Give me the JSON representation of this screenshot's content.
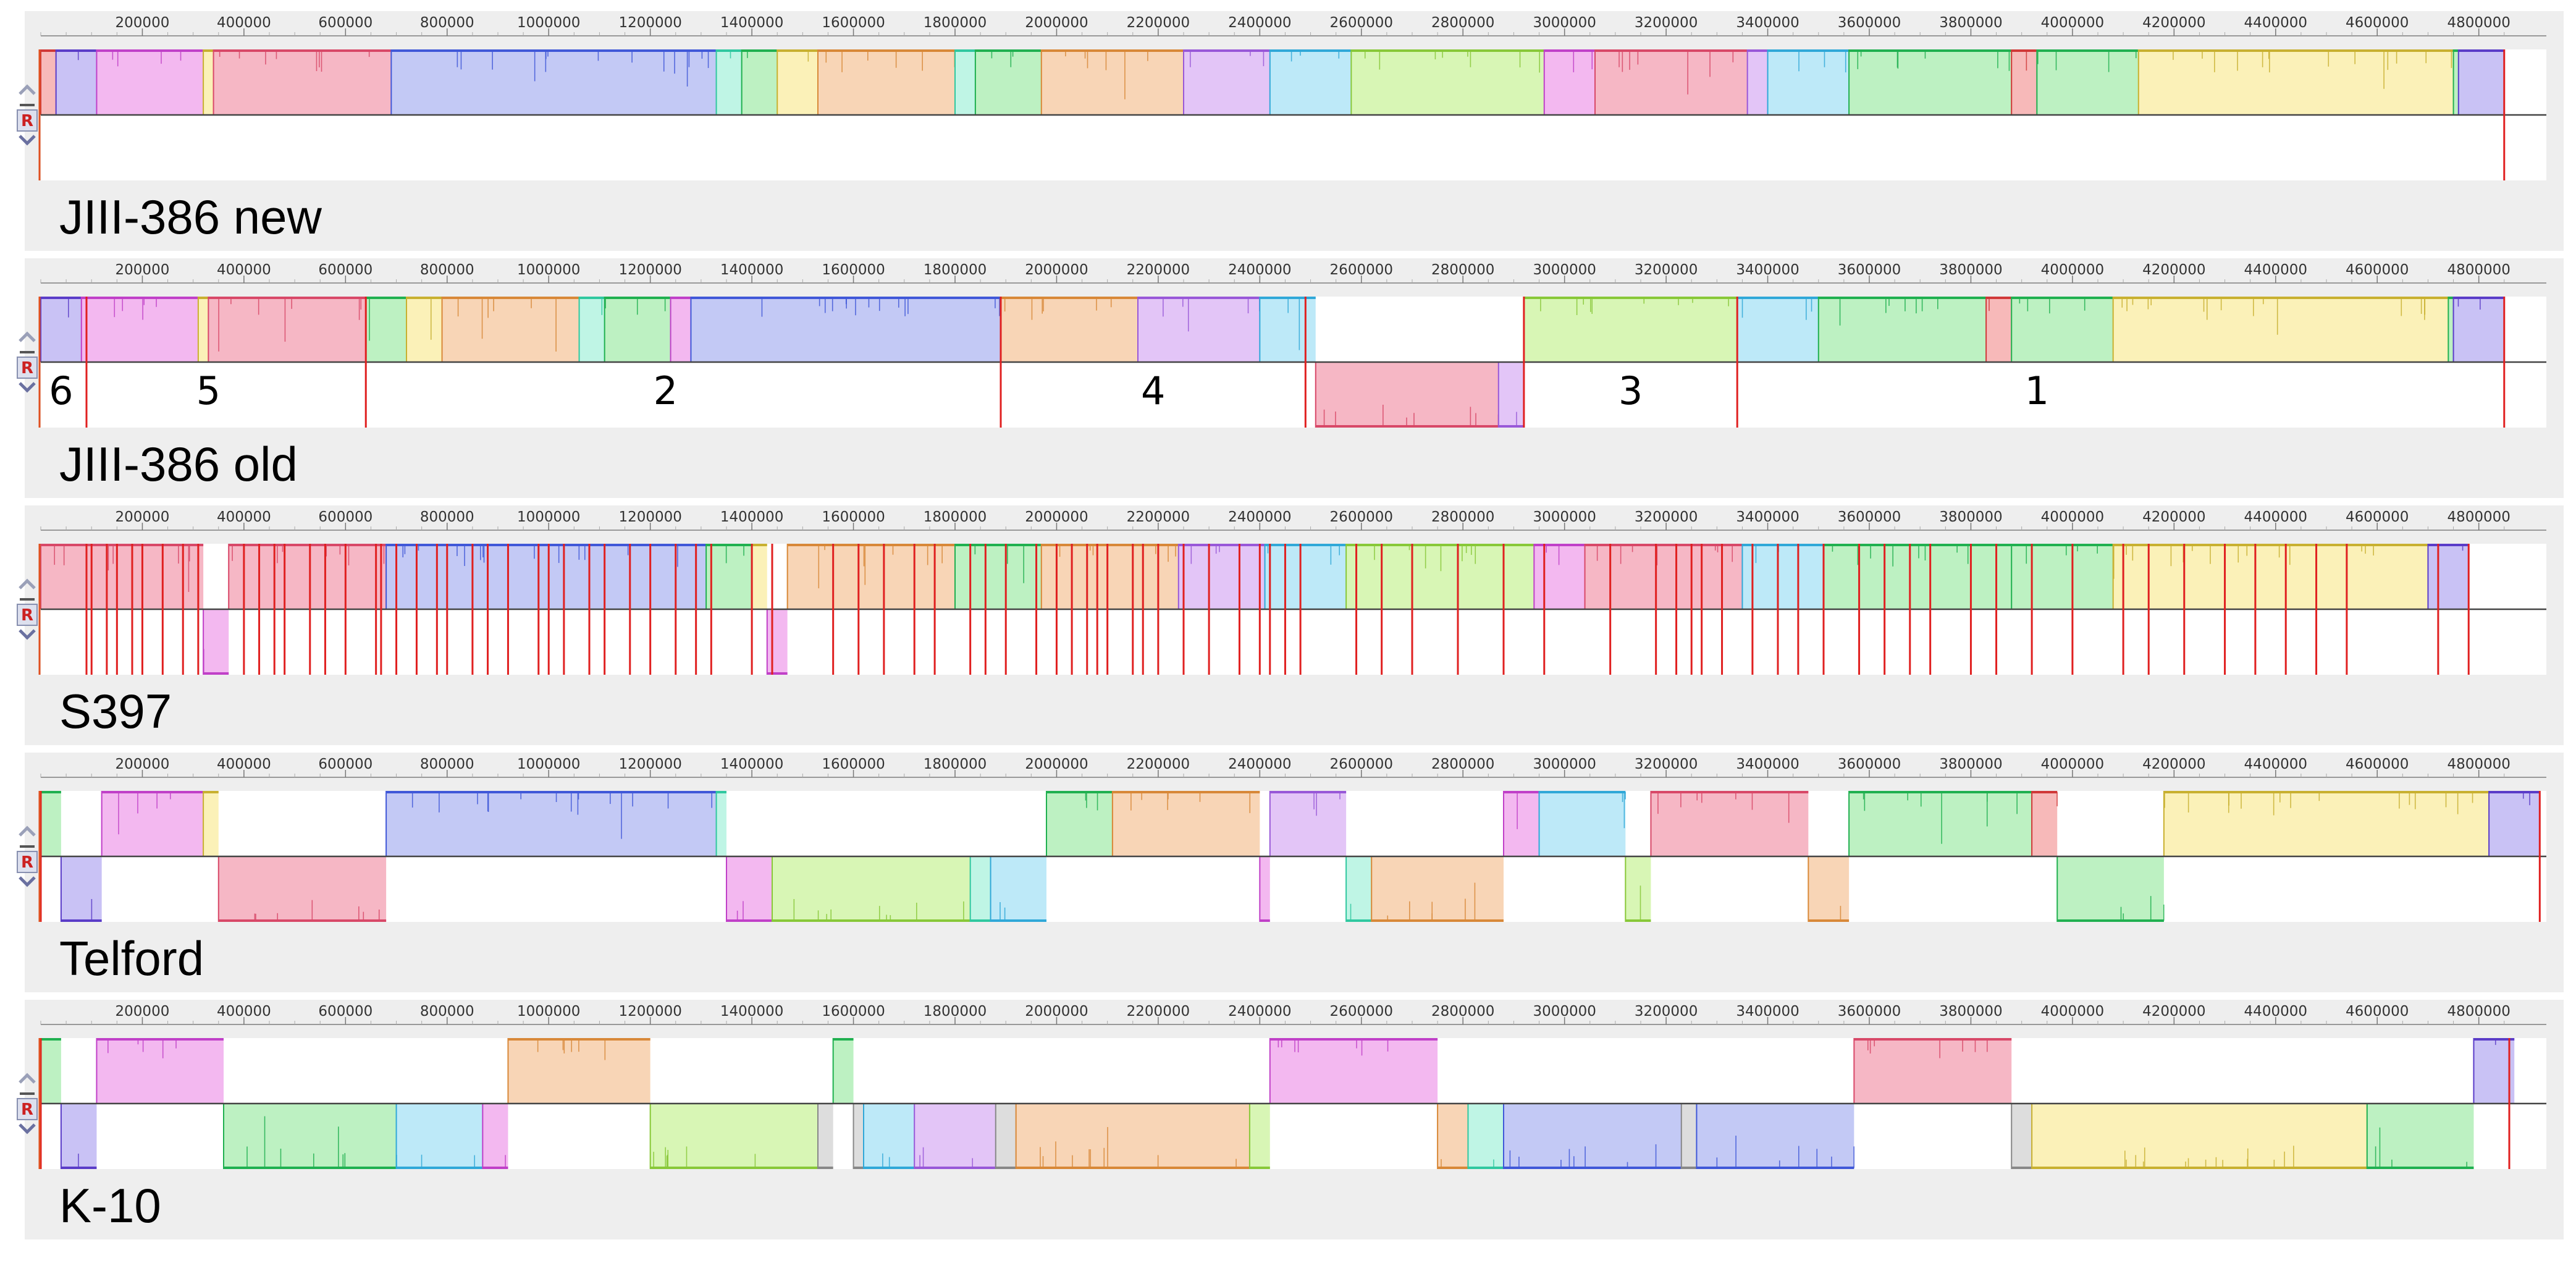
{
  "figure": {
    "type": "genome-alignment",
    "description_free": true,
    "axis": {
      "min": 0,
      "max": 4860000
    },
    "tick_values": [
      200000,
      400000,
      600000,
      800000,
      1000000,
      1200000,
      1400000,
      1600000,
      1800000,
      2000000,
      2200000,
      2400000,
      2600000,
      2800000,
      3000000,
      3200000,
      3400000,
      3600000,
      3800000,
      4000000,
      4200000,
      4400000,
      4600000,
      4800000
    ],
    "control_letter": "R",
    "colors": {
      "purple": "#c9c2f5",
      "magenta": "#f3b8f0",
      "pink": "#f6b7c5",
      "blue": "#c3c9f5",
      "green": "#bdf1c2",
      "peach": "#f8d5b6",
      "lgreen": "#d8f6b5",
      "lavender": "#e3c5f7",
      "sky": "#bde9f8",
      "yellow": "#fbf1b8",
      "aqua": "#bff5e5",
      "red": "#f7b9b9",
      "gray": "#dddddd"
    },
    "edge_colors": {
      "purple": "#5a3cc8",
      "magenta": "#c040c8",
      "pink": "#d84868",
      "blue": "#4058d8",
      "green": "#20b050",
      "peach": "#d88838",
      "lgreen": "#88c838",
      "lavender": "#9858d8",
      "sky": "#30a8d8",
      "yellow": "#c8b030",
      "aqua": "#30c8a0",
      "red": "#d03838",
      "gray": "#888888"
    }
  },
  "genomes": [
    {
      "name": "JIII-386 new",
      "blocks": [
        {
          "s": 0,
          "e": 30000,
          "c": "red",
          "d": 1
        },
        {
          "s": 30000,
          "e": 110000,
          "c": "purple",
          "d": 1
        },
        {
          "s": 110000,
          "e": 320000,
          "c": "magenta",
          "d": 1
        },
        {
          "s": 320000,
          "e": 340000,
          "c": "yellow",
          "d": 1
        },
        {
          "s": 340000,
          "e": 690000,
          "c": "pink",
          "d": 1
        },
        {
          "s": 690000,
          "e": 1330000,
          "c": "blue",
          "d": 1
        },
        {
          "s": 1330000,
          "e": 1380000,
          "c": "aqua",
          "d": 1
        },
        {
          "s": 1380000,
          "e": 1450000,
          "c": "green",
          "d": 1
        },
        {
          "s": 1450000,
          "e": 1530000,
          "c": "yellow",
          "d": 1
        },
        {
          "s": 1530000,
          "e": 1800000,
          "c": "peach",
          "d": 1
        },
        {
          "s": 1800000,
          "e": 1840000,
          "c": "aqua",
          "d": 1
        },
        {
          "s": 1840000,
          "e": 1970000,
          "c": "green",
          "d": 1
        },
        {
          "s": 1970000,
          "e": 2250000,
          "c": "peach",
          "d": 1
        },
        {
          "s": 2250000,
          "e": 2420000,
          "c": "lavender",
          "d": 1
        },
        {
          "s": 2420000,
          "e": 2580000,
          "c": "sky",
          "d": 1
        },
        {
          "s": 2580000,
          "e": 2960000,
          "c": "lgreen",
          "d": 1
        },
        {
          "s": 2960000,
          "e": 3060000,
          "c": "magenta",
          "d": 1
        },
        {
          "s": 3060000,
          "e": 3360000,
          "c": "pink",
          "d": 1
        },
        {
          "s": 3360000,
          "e": 3400000,
          "c": "lavender",
          "d": 1
        },
        {
          "s": 3400000,
          "e": 3560000,
          "c": "sky",
          "d": 1
        },
        {
          "s": 3560000,
          "e": 3880000,
          "c": "green",
          "d": 1
        },
        {
          "s": 3880000,
          "e": 3930000,
          "c": "red",
          "d": 1
        },
        {
          "s": 3930000,
          "e": 4130000,
          "c": "green",
          "d": 1
        },
        {
          "s": 4130000,
          "e": 4750000,
          "c": "yellow",
          "d": 1
        },
        {
          "s": 4750000,
          "e": 4760000,
          "c": "green",
          "d": 1
        },
        {
          "s": 4760000,
          "e": 4850000,
          "c": "purple",
          "d": 1
        }
      ],
      "redlines": [
        4850000
      ],
      "segments": []
    },
    {
      "name": "JIII-386 old",
      "blocks": [
        {
          "s": 0,
          "e": 80000,
          "c": "purple",
          "d": 1
        },
        {
          "s": 80000,
          "e": 310000,
          "c": "magenta",
          "d": 1
        },
        {
          "s": 310000,
          "e": 330000,
          "c": "yellow",
          "d": 1
        },
        {
          "s": 330000,
          "e": 640000,
          "c": "pink",
          "d": 1
        },
        {
          "s": 640000,
          "e": 720000,
          "c": "green",
          "d": 1
        },
        {
          "s": 720000,
          "e": 790000,
          "c": "yellow",
          "d": 1
        },
        {
          "s": 790000,
          "e": 1060000,
          "c": "peach",
          "d": 1
        },
        {
          "s": 1060000,
          "e": 1110000,
          "c": "aqua",
          "d": 1
        },
        {
          "s": 1110000,
          "e": 1240000,
          "c": "green",
          "d": 1
        },
        {
          "s": 1240000,
          "e": 1280000,
          "c": "magenta",
          "d": 1
        },
        {
          "s": 1280000,
          "e": 1890000,
          "c": "blue",
          "d": 1
        },
        {
          "s": 1890000,
          "e": 2160000,
          "c": "peach",
          "d": 1
        },
        {
          "s": 2160000,
          "e": 2400000,
          "c": "lavender",
          "d": 1
        },
        {
          "s": 2400000,
          "e": 2510000,
          "c": "sky",
          "d": 1
        },
        {
          "s": 2510000,
          "e": 2870000,
          "c": "pink",
          "d": -1
        },
        {
          "s": 2870000,
          "e": 2920000,
          "c": "lavender",
          "d": -1
        },
        {
          "s": 2920000,
          "e": 3340000,
          "c": "lgreen",
          "d": 1
        },
        {
          "s": 3340000,
          "e": 3500000,
          "c": "sky",
          "d": 1
        },
        {
          "s": 3500000,
          "e": 3830000,
          "c": "green",
          "d": 1
        },
        {
          "s": 3830000,
          "e": 3880000,
          "c": "red",
          "d": 1
        },
        {
          "s": 3880000,
          "e": 4080000,
          "c": "green",
          "d": 1
        },
        {
          "s": 4080000,
          "e": 4740000,
          "c": "yellow",
          "d": 1
        },
        {
          "s": 4740000,
          "e": 4750000,
          "c": "green",
          "d": 1
        },
        {
          "s": 4750000,
          "e": 4850000,
          "c": "purple",
          "d": 1
        }
      ],
      "redlines": [
        90000,
        640000,
        1890000,
        2490000,
        2920000,
        3340000,
        4850000
      ],
      "segments": [
        {
          "label": "6",
          "pos": 40000
        },
        {
          "label": "5",
          "pos": 330000
        },
        {
          "label": "2",
          "pos": 1230000
        },
        {
          "label": "4",
          "pos": 2190000
        },
        {
          "label": "3",
          "pos": 3130000
        },
        {
          "label": "1",
          "pos": 3930000
        }
      ]
    },
    {
      "name": "S397",
      "blocks": [
        {
          "s": 0,
          "e": 320000,
          "c": "pink",
          "d": 1
        },
        {
          "s": 320000,
          "e": 370000,
          "c": "magenta",
          "d": -1
        },
        {
          "s": 370000,
          "e": 680000,
          "c": "pink",
          "d": 1
        },
        {
          "s": 680000,
          "e": 1310000,
          "c": "blue",
          "d": 1
        },
        {
          "s": 1310000,
          "e": 1400000,
          "c": "green",
          "d": 1
        },
        {
          "s": 1400000,
          "e": 1430000,
          "c": "yellow",
          "d": 1
        },
        {
          "s": 1430000,
          "e": 1470000,
          "c": "magenta",
          "d": -1
        },
        {
          "s": 1470000,
          "e": 1800000,
          "c": "peach",
          "d": 1
        },
        {
          "s": 1800000,
          "e": 1970000,
          "c": "green",
          "d": 1
        },
        {
          "s": 1970000,
          "e": 2240000,
          "c": "peach",
          "d": 1
        },
        {
          "s": 2240000,
          "e": 2410000,
          "c": "lavender",
          "d": 1
        },
        {
          "s": 2410000,
          "e": 2570000,
          "c": "sky",
          "d": 1
        },
        {
          "s": 2570000,
          "e": 2940000,
          "c": "lgreen",
          "d": 1
        },
        {
          "s": 2940000,
          "e": 3040000,
          "c": "magenta",
          "d": 1
        },
        {
          "s": 3040000,
          "e": 3350000,
          "c": "pink",
          "d": 1
        },
        {
          "s": 3350000,
          "e": 3510000,
          "c": "sky",
          "d": 1
        },
        {
          "s": 3510000,
          "e": 3880000,
          "c": "green",
          "d": 1
        },
        {
          "s": 3880000,
          "e": 4080000,
          "c": "green",
          "d": 1
        },
        {
          "s": 4080000,
          "e": 4700000,
          "c": "yellow",
          "d": 1
        },
        {
          "s": 4700000,
          "e": 4780000,
          "c": "purple",
          "d": 1
        }
      ],
      "redlines": [
        90000,
        100000,
        130000,
        150000,
        180000,
        200000,
        240000,
        280000,
        310000,
        400000,
        430000,
        460000,
        480000,
        530000,
        560000,
        600000,
        660000,
        670000,
        700000,
        740000,
        780000,
        800000,
        850000,
        880000,
        920000,
        980000,
        1000000,
        1030000,
        1080000,
        1110000,
        1160000,
        1200000,
        1250000,
        1290000,
        1320000,
        1400000,
        1440000,
        1560000,
        1610000,
        1660000,
        1720000,
        1760000,
        1830000,
        1860000,
        1900000,
        1960000,
        2000000,
        2030000,
        2060000,
        2080000,
        2100000,
        2150000,
        2170000,
        2200000,
        2250000,
        2300000,
        2360000,
        2400000,
        2420000,
        2450000,
        2480000,
        2590000,
        2640000,
        2700000,
        2790000,
        2880000,
        2960000,
        3090000,
        3180000,
        3220000,
        3250000,
        3270000,
        3310000,
        3370000,
        3420000,
        3460000,
        3510000,
        3580000,
        3630000,
        3680000,
        3720000,
        3800000,
        3850000,
        3920000,
        4000000,
        4100000,
        4150000,
        4220000,
        4300000,
        4360000,
        4420000,
        4480000,
        4540000,
        4720000,
        4780000
      ],
      "segments": []
    },
    {
      "name": "Telford",
      "blocks": [
        {
          "s": 0,
          "e": 40000,
          "c": "green",
          "d": 1
        },
        {
          "s": 40000,
          "e": 120000,
          "c": "purple",
          "d": -1
        },
        {
          "s": 120000,
          "e": 320000,
          "c": "magenta",
          "d": 1
        },
        {
          "s": 320000,
          "e": 350000,
          "c": "yellow",
          "d": 1
        },
        {
          "s": 350000,
          "e": 680000,
          "c": "pink",
          "d": -1
        },
        {
          "s": 680000,
          "e": 1330000,
          "c": "blue",
          "d": 1
        },
        {
          "s": 1330000,
          "e": 1350000,
          "c": "aqua",
          "d": 1
        },
        {
          "s": 1350000,
          "e": 1440000,
          "c": "magenta",
          "d": -1
        },
        {
          "s": 1440000,
          "e": 1830000,
          "c": "lgreen",
          "d": -1
        },
        {
          "s": 1830000,
          "e": 1870000,
          "c": "aqua",
          "d": -1
        },
        {
          "s": 1870000,
          "e": 1980000,
          "c": "sky",
          "d": -1
        },
        {
          "s": 1980000,
          "e": 2110000,
          "c": "green",
          "d": 1
        },
        {
          "s": 2110000,
          "e": 2400000,
          "c": "peach",
          "d": 1
        },
        {
          "s": 2400000,
          "e": 2420000,
          "c": "magenta",
          "d": -1
        },
        {
          "s": 2420000,
          "e": 2570000,
          "c": "lavender",
          "d": 1
        },
        {
          "s": 2570000,
          "e": 2620000,
          "c": "aqua",
          "d": -1
        },
        {
          "s": 2620000,
          "e": 2880000,
          "c": "peach",
          "d": -1
        },
        {
          "s": 2880000,
          "e": 2950000,
          "c": "magenta",
          "d": 1
        },
        {
          "s": 2950000,
          "e": 3120000,
          "c": "sky",
          "d": 1
        },
        {
          "s": 3120000,
          "e": 3170000,
          "c": "lgreen",
          "d": -1
        },
        {
          "s": 3170000,
          "e": 3480000,
          "c": "pink",
          "d": 1
        },
        {
          "s": 3480000,
          "e": 3560000,
          "c": "peach",
          "d": -1
        },
        {
          "s": 3560000,
          "e": 3920000,
          "c": "green",
          "d": 1
        },
        {
          "s": 3920000,
          "e": 3970000,
          "c": "red",
          "d": 1
        },
        {
          "s": 3970000,
          "e": 4180000,
          "c": "green",
          "d": -1
        },
        {
          "s": 4180000,
          "e": 4820000,
          "c": "yellow",
          "d": 1
        },
        {
          "s": 4820000,
          "e": 4920000,
          "c": "purple",
          "d": 1
        }
      ],
      "redlines": [
        0,
        4920000
      ],
      "segments": []
    },
    {
      "name": "K-10",
      "blocks": [
        {
          "s": 0,
          "e": 40000,
          "c": "green",
          "d": 1
        },
        {
          "s": 40000,
          "e": 110000,
          "c": "purple",
          "d": -1
        },
        {
          "s": 110000,
          "e": 360000,
          "c": "magenta",
          "d": 1
        },
        {
          "s": 360000,
          "e": 700000,
          "c": "green",
          "d": -1
        },
        {
          "s": 700000,
          "e": 870000,
          "c": "sky",
          "d": -1
        },
        {
          "s": 870000,
          "e": 920000,
          "c": "magenta",
          "d": -1
        },
        {
          "s": 920000,
          "e": 1200000,
          "c": "peach",
          "d": 1
        },
        {
          "s": 1200000,
          "e": 1530000,
          "c": "lgreen",
          "d": -1
        },
        {
          "s": 1530000,
          "e": 1560000,
          "c": "gray",
          "d": -1
        },
        {
          "s": 1560000,
          "e": 1600000,
          "c": "green",
          "d": 1
        },
        {
          "s": 1600000,
          "e": 1620000,
          "c": "gray",
          "d": -1
        },
        {
          "s": 1620000,
          "e": 1720000,
          "c": "sky",
          "d": -1
        },
        {
          "s": 1720000,
          "e": 1880000,
          "c": "lavender",
          "d": -1
        },
        {
          "s": 1880000,
          "e": 1920000,
          "c": "gray",
          "d": -1
        },
        {
          "s": 1920000,
          "e": 2380000,
          "c": "peach",
          "d": -1
        },
        {
          "s": 2380000,
          "e": 2420000,
          "c": "lgreen",
          "d": -1
        },
        {
          "s": 2420000,
          "e": 2750000,
          "c": "magenta",
          "d": 1
        },
        {
          "s": 2750000,
          "e": 2810000,
          "c": "peach",
          "d": -1
        },
        {
          "s": 2810000,
          "e": 2880000,
          "c": "aqua",
          "d": -1
        },
        {
          "s": 2880000,
          "e": 3230000,
          "c": "blue",
          "d": -1
        },
        {
          "s": 3230000,
          "e": 3260000,
          "c": "gray",
          "d": -1
        },
        {
          "s": 3260000,
          "e": 3570000,
          "c": "blue",
          "d": -1
        },
        {
          "s": 3570000,
          "e": 3880000,
          "c": "pink",
          "d": 1
        },
        {
          "s": 3880000,
          "e": 3920000,
          "c": "gray",
          "d": -1
        },
        {
          "s": 3920000,
          "e": 4580000,
          "c": "yellow",
          "d": -1
        },
        {
          "s": 4580000,
          "e": 4790000,
          "c": "green",
          "d": -1
        },
        {
          "s": 4790000,
          "e": 4870000,
          "c": "purple",
          "d": 1
        }
      ],
      "redlines": [
        0,
        4860000
      ],
      "segments": []
    }
  ]
}
